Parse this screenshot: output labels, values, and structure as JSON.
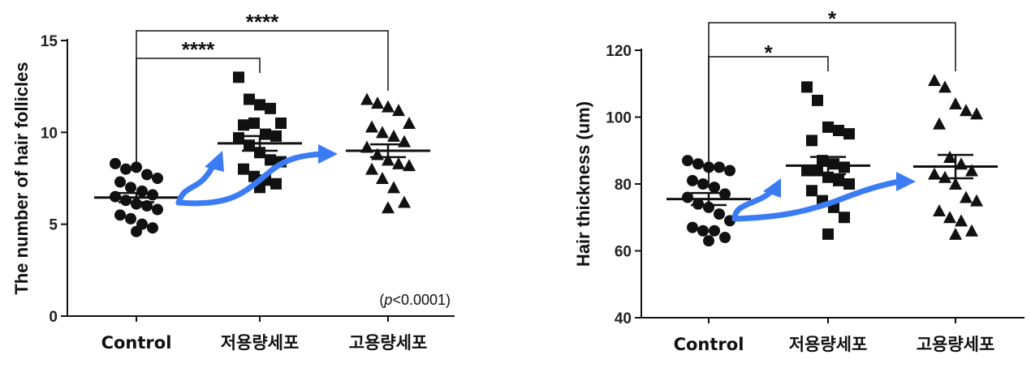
{
  "chart_data": [
    {
      "type": "scatter",
      "ylabel": "The number of hair follicles",
      "ylim": [
        0,
        15
      ],
      "yticks": [
        0,
        5,
        10,
        15
      ],
      "categories": [
        "Control",
        "저용량세포",
        "고용량세포"
      ],
      "markers": [
        "circle",
        "square",
        "triangle"
      ],
      "series": [
        {
          "category": "Control",
          "values": [
            8.3,
            8.0,
            8.1,
            7.7,
            7.5,
            7.3,
            7.0,
            6.8,
            6.6,
            6.5,
            6.3,
            6.1,
            6.0,
            5.8,
            5.5,
            5.3,
            5.0,
            4.8,
            4.6
          ],
          "mean": 6.45,
          "sem": 0.25
        },
        {
          "category": "저용량세포",
          "values": [
            13.0,
            11.8,
            11.5,
            11.3,
            10.5,
            10.4,
            10.5,
            9.9,
            9.8,
            9.7,
            9.3,
            8.9,
            8.5,
            8.4,
            8.0,
            7.6,
            7.4,
            7.2,
            7.0
          ],
          "mean": 9.4,
          "sem": 0.4
        },
        {
          "category": "고용량세포",
          "values": [
            11.8,
            11.6,
            11.4,
            11.2,
            10.5,
            10.3,
            10.0,
            9.8,
            9.5,
            9.2,
            8.8,
            8.5,
            8.3,
            8.2,
            8.0,
            7.5,
            7.0,
            6.2,
            5.9
          ],
          "mean": 9.0,
          "sem": 0.35
        }
      ],
      "significance": [
        {
          "from": "Control",
          "to": "저용량세포",
          "label": "****"
        },
        {
          "from": "Control",
          "to": "고용량세포",
          "label": "****"
        }
      ],
      "annotation": {
        "italic": "p",
        "rest": "<0.0001)",
        "open": "("
      }
    },
    {
      "type": "scatter",
      "ylabel": "Hair thickness (um)",
      "ylim": [
        40,
        120
      ],
      "yticks": [
        40,
        60,
        80,
        100,
        120
      ],
      "categories": [
        "Control",
        "저용량세포",
        "고용량세포"
      ],
      "markers": [
        "circle",
        "square",
        "triangle"
      ],
      "series": [
        {
          "category": "Control",
          "values": [
            87,
            86,
            85,
            85,
            84,
            81,
            80,
            79,
            77,
            76,
            74,
            73,
            71,
            69,
            67,
            66,
            66,
            64,
            63
          ],
          "mean": 75.5,
          "sem": 1.8
        },
        {
          "category": "저용량세포",
          "values": [
            109,
            105,
            97,
            96,
            95,
            93,
            87,
            86,
            85,
            84,
            84,
            82,
            81,
            80,
            78,
            75,
            73,
            70,
            65
          ],
          "mean": 85.5,
          "sem": 2.6
        },
        {
          "category": "고용량세포",
          "values": [
            111,
            109,
            104,
            102,
            101,
            98,
            88,
            86,
            84,
            83,
            82,
            80,
            76,
            75,
            72,
            70,
            69,
            66,
            65
          ],
          "mean": 85.2,
          "sem": 3.5
        }
      ],
      "significance": [
        {
          "from": "Control",
          "to": "저용량세포",
          "label": "*"
        },
        {
          "from": "Control",
          "to": "고용량세포",
          "label": "*"
        }
      ]
    }
  ],
  "colors": {
    "arrow": "#3b7cf5",
    "ink": "#111111"
  }
}
